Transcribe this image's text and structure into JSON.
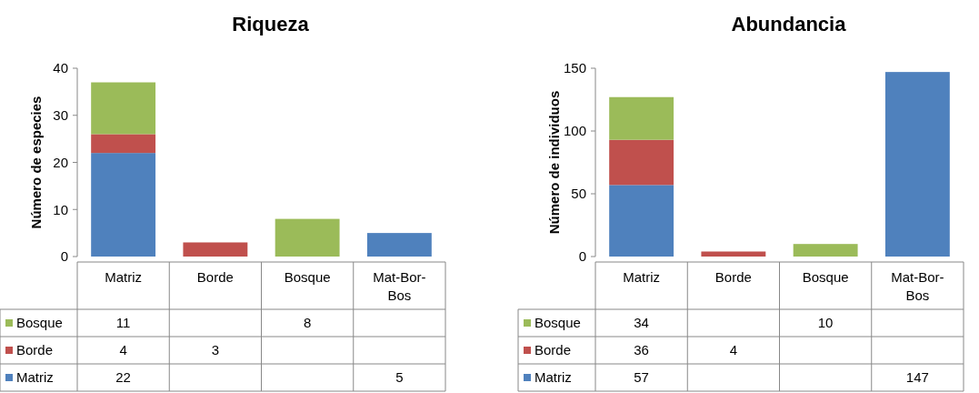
{
  "chart_data": [
    {
      "type": "bar",
      "title": "Riqueza",
      "ylabel": "Número de especies",
      "categories": [
        "Matriz",
        "Borde",
        "Bosque",
        "Mat-Bor-Bos"
      ],
      "stacked": true,
      "data_labels": true,
      "legend": "bottom",
      "ylim": [
        0,
        40
      ],
      "yticks": [
        0,
        10,
        20,
        30,
        40
      ],
      "series": [
        {
          "name": "Matriz",
          "color": "#4f81bd",
          "values": [
            22,
            null,
            null,
            5
          ]
        },
        {
          "name": "Borde",
          "color": "#c0504d",
          "values": [
            4,
            3,
            null,
            null
          ]
        },
        {
          "name": "Bosque",
          "color": "#9bbb59",
          "values": [
            11,
            null,
            8,
            null
          ]
        }
      ]
    },
    {
      "type": "bar",
      "title": "Abundancia",
      "ylabel": "Número de individuos",
      "categories": [
        "Matriz",
        "Borde",
        "Bosque",
        "Mat-Bor-Bos"
      ],
      "stacked": true,
      "data_labels": true,
      "legend": "bottom",
      "ylim": [
        0,
        150
      ],
      "yticks": [
        0,
        50,
        100,
        150
      ],
      "series": [
        {
          "name": "Matriz",
          "color": "#4f81bd",
          "values": [
            57,
            null,
            null,
            147
          ]
        },
        {
          "name": "Borde",
          "color": "#c0504d",
          "values": [
            36,
            4,
            null,
            null
          ]
        },
        {
          "name": "Bosque",
          "color": "#9bbb59",
          "values": [
            34,
            null,
            10,
            null
          ]
        }
      ]
    }
  ]
}
